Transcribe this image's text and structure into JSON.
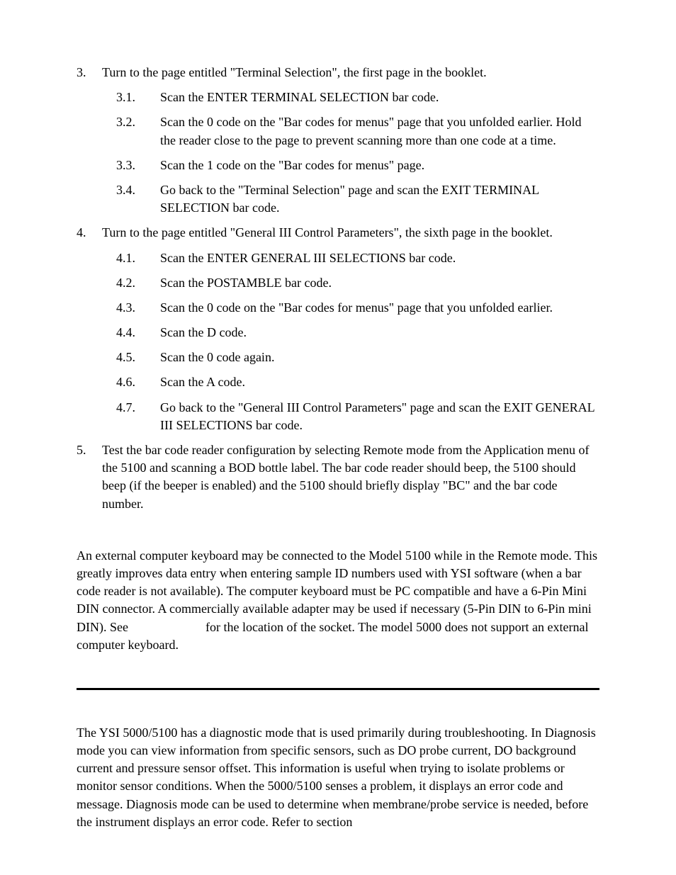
{
  "item3": {
    "num": "3.",
    "text": "Turn to the page entitled \"Terminal Selection\", the first page in the booklet.",
    "subs": [
      {
        "num": "3.1.",
        "text": "Scan the ENTER TERMINAL SELECTION bar code."
      },
      {
        "num": "3.2.",
        "text": "Scan the 0 code on the  \"Bar codes for menus\" page that you unfolded earlier. Hold the reader close to the page to prevent scanning more than one code at a time."
      },
      {
        "num": "3.3.",
        "text": "Scan the 1 code on the  \"Bar codes for menus\" page."
      },
      {
        "num": "3.4.",
        "text": "Go back to the \"Terminal Selection\" page and scan the EXIT TERMINAL SELECTION bar code."
      }
    ]
  },
  "item4": {
    "num": "4.",
    "text": "Turn to the page entitled \"General III Control Parameters\", the sixth page in the booklet.",
    "subs": [
      {
        "num": "4.1.",
        "text": "Scan the ENTER GENERAL III SELECTIONS bar code."
      },
      {
        "num": "4.2.",
        "text": "Scan the POSTAMBLE bar code."
      },
      {
        "num": "4.3.",
        "text": "Scan the 0 code on the  \"Bar codes for menus\" page that you unfolded earlier."
      },
      {
        "num": "4.4.",
        "text": "Scan the D code."
      },
      {
        "num": "4.5.",
        "text": "Scan the 0 code again."
      },
      {
        "num": "4.6.",
        "text": "Scan the A code."
      },
      {
        "num": "4.7.",
        "text": "Go back to the \"General III Control Parameters\" page and scan the EXIT GENERAL III SELECTIONS bar code."
      }
    ]
  },
  "item5": {
    "num": "5.",
    "text": "Test the bar code reader configuration by selecting Remote mode from the Application menu of the 5100 and scanning a BOD bottle label. The bar code reader should beep, the 5100 should beep (if the beeper is enabled) and the 5100 should briefly display \"BC\" and the bar code number."
  },
  "para1_part1": "An external computer keyboard may be connected to the Model 5100 while in the Remote mode. This greatly improves data entry when entering sample ID numbers used with YSI software (when a bar code reader is not available). The computer keyboard must be PC compatible and have a 6-Pin Mini DIN connector. A commercially available adapter may be used if necessary (5-Pin DIN to 6-Pin mini DIN). See ",
  "para1_part2": " for the location of the socket. The model 5000 does not support an external computer keyboard.",
  "para2": "The YSI 5000/5100 has a diagnostic mode that is used primarily during troubleshooting. In Diagnosis mode you can view information from specific sensors, such as DO probe current, DO background current and pressure sensor offset. This information is useful when trying to isolate problems or monitor sensor conditions. When the 5000/5100 senses a problem, it displays an error code and message. Diagnosis mode can be used to determine when membrane/probe service is needed, before the instrument displays an error code. Refer to section"
}
